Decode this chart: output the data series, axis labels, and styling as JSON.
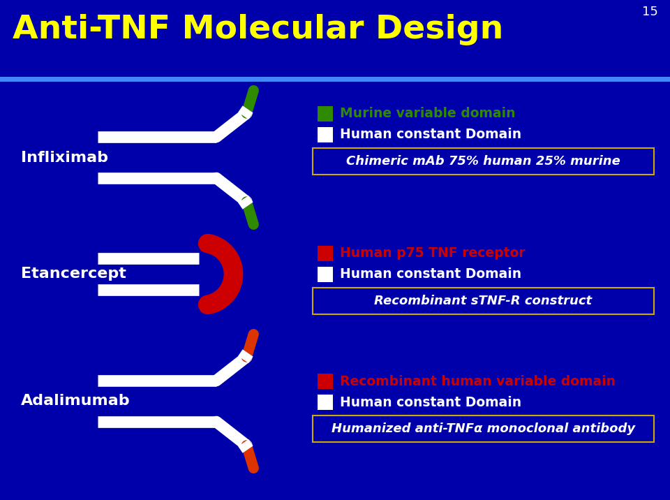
{
  "title": "Anti-TNF Molecular Design",
  "slide_number": "15",
  "bg_color": "#0000AA",
  "title_color": "#FFFF00",
  "white_color": "#FFFFFF",
  "green_color": "#2E8B00",
  "red_color": "#CC0000",
  "orange_color": "#DD3300",
  "blue_line_color": "#4488FF",
  "label_infliximab": "Infliximab",
  "label_etancercept": "Etancercept",
  "label_adalimumab": "Adalimumab",
  "legend1_green_text": "Murine variable domain",
  "legend1_white_text": "Human constant Domain",
  "legend1_box_text": "Chimeric mAb 75% human 25% murine",
  "legend2_red_text": "Human p75 TNF receptor",
  "legend2_white_text": "Human constant Domain",
  "legend2_box_text": "Recombinant sTNF-R construct",
  "legend3_red_text": "Recombinant human variable domain",
  "legend3_white_text": "Human constant Domain",
  "legend3_box_text": "Humanized anti-TNFα monoclonal antibody",
  "box_border_color": "#CCAA00"
}
